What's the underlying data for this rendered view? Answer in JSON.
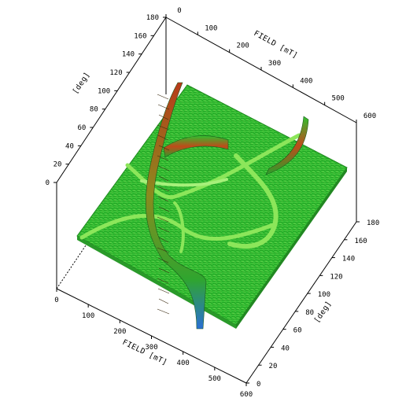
{
  "chart_data": {
    "type": "surface",
    "axes": {
      "x_near": {
        "label": "FIELD [mT]",
        "min": 0,
        "max": 600,
        "ticks": [
          0,
          100,
          200,
          300,
          400,
          500,
          600
        ]
      },
      "x_far": {
        "label": "FIELD [mT]",
        "min": 0,
        "max": 600,
        "ticks": [
          0,
          100,
          200,
          300,
          400,
          500,
          600
        ]
      },
      "y_right": {
        "label": "[deg]",
        "min": 0,
        "max": 180,
        "ticks": [
          0,
          20,
          40,
          60,
          80,
          100,
          120,
          140,
          160,
          180
        ]
      },
      "z_left": {
        "label": "[deg]",
        "min": 0,
        "max": 180,
        "ticks": [
          0,
          20,
          40,
          60,
          80,
          100,
          120,
          140,
          160,
          180
        ]
      }
    },
    "colors": {
      "surface": "#2fbf2f",
      "surface_light": "#8ce65a",
      "surface_dark": "#1f8f1f",
      "peak_red": "#b83a1a",
      "peak_blue": "#2a6fd6"
    },
    "grid": false,
    "legend": "none"
  }
}
